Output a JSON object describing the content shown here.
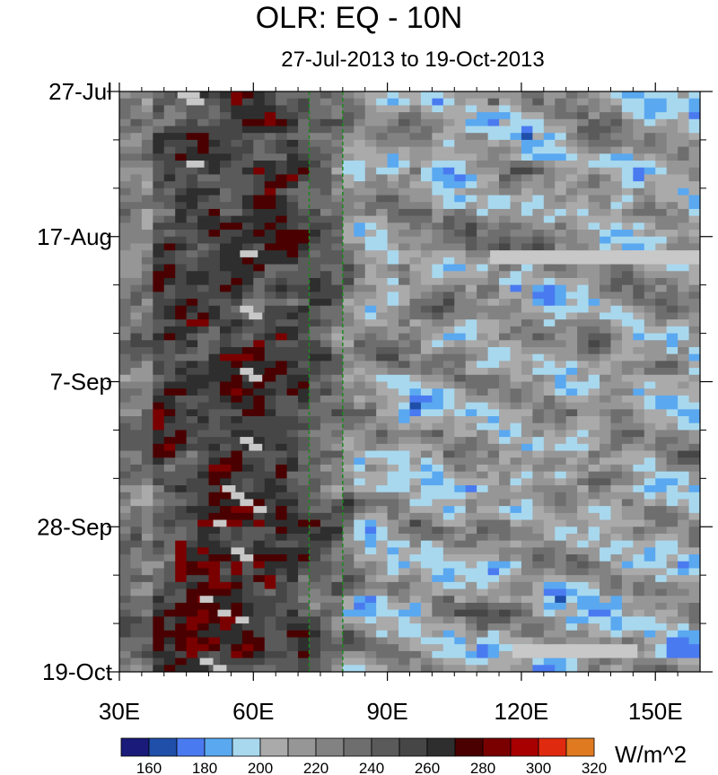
{
  "chart_data": {
    "type": "heatmap",
    "title": "OLR: EQ - 10N",
    "subtitle": "27-Jul-2013 to 19-Oct-2013",
    "units": "W/m^2",
    "xlim": [
      30,
      160
    ],
    "ylim_days": [
      0,
      84
    ],
    "x_ticks": [
      {
        "value": 30,
        "label": "30E"
      },
      {
        "value": 60,
        "label": "60E"
      },
      {
        "value": 90,
        "label": "90E"
      },
      {
        "value": 120,
        "label": "120E"
      },
      {
        "value": 150,
        "label": "150E"
      }
    ],
    "y_ticks": [
      {
        "day": 0,
        "label": "27-Jul"
      },
      {
        "day": 21,
        "label": "17-Aug"
      },
      {
        "day": 42,
        "label": "7-Sep"
      },
      {
        "day": 63,
        "label": "28-Sep"
      },
      {
        "day": 84,
        "label": "19-Oct"
      }
    ],
    "reference_lines_lon": [
      72.5,
      80
    ],
    "contour_levels": [
      160,
      170,
      180,
      190,
      200,
      210,
      220,
      230,
      240,
      250,
      260,
      270,
      280,
      290,
      300,
      310,
      320,
      330
    ],
    "colorbar_labels": [
      "160",
      "180",
      "200",
      "220",
      "240",
      "260",
      "280",
      "300",
      "320"
    ],
    "colorbar_colors": [
      "#1a1a7a",
      "#1f4fa8",
      "#4a7af0",
      "#5aa8f0",
      "#a8d8ee",
      "#aaaaaa",
      "#969696",
      "#828282",
      "#6e6e6e",
      "#5a5a5a",
      "#464646",
      "#2e2e2e",
      "#4a0000",
      "#7a0000",
      "#a80000",
      "#e02a10",
      "#e07a20"
    ],
    "missing_color": "#c8c8c8",
    "series_description": "Low OLR (convection, blues) east of 80E with eastward/northward propagating bands; high OLR (dry, dark greys to dark red) over 40E-70E."
  }
}
